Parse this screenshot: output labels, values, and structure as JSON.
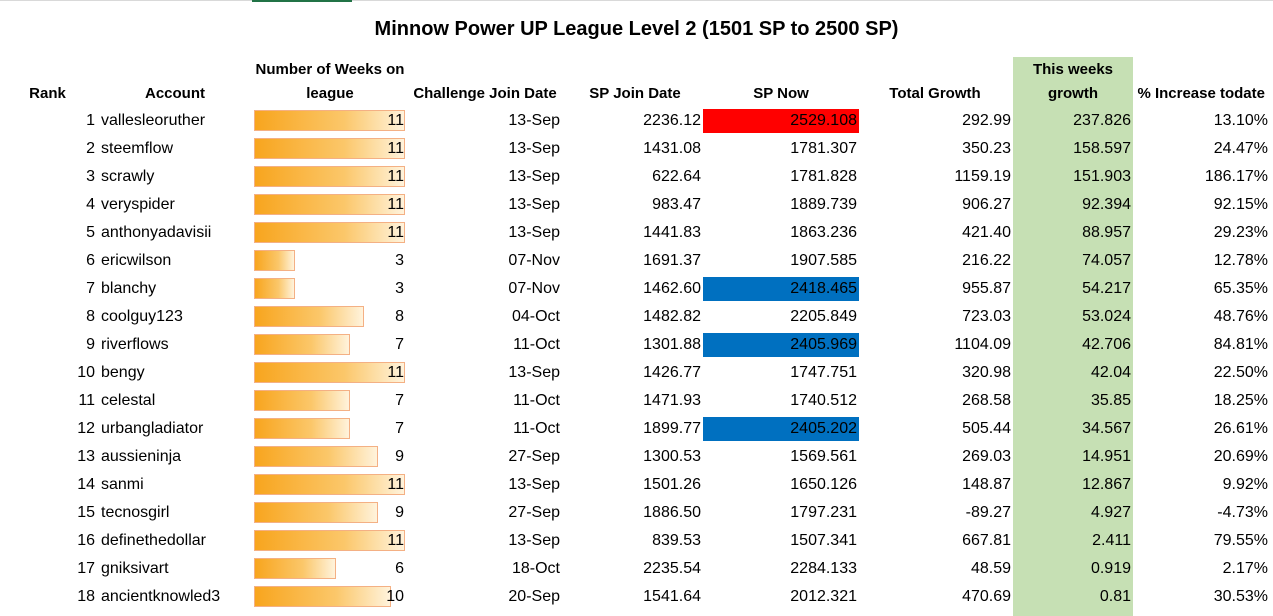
{
  "title": "Minnow Power UP League Level 2 (1501 SP to 2500 SP)",
  "headers": {
    "rank": "Rank",
    "account": "Account",
    "weeks_line1": "Number of Weeks on",
    "weeks_line2": "league",
    "join_date": "Challenge Join Date",
    "sp_join": "SP Join Date",
    "sp_now": "SP Now",
    "total_growth": "Total Growth",
    "week_growth_line1": "This weeks",
    "week_growth_line2": "growth",
    "pct_increase": "% Increase todate"
  },
  "colors": {
    "week_growth_column": "#c6e0b4",
    "red_highlight": "#ff0000",
    "blue_highlight": "#0070c0",
    "data_bar": "#f8a51e"
  },
  "weeks_max": 11,
  "rows": [
    {
      "rank": "1",
      "account": "vallesleoruther",
      "weeks": 11,
      "weeks_label": "11",
      "join_date": "13-Sep",
      "sp_join": "2236.12",
      "sp_now": "2529.108",
      "sp_now_highlight": "red",
      "total_growth": "292.99",
      "week_growth": "237.826",
      "pct": "13.10%"
    },
    {
      "rank": "2",
      "account": "steemflow",
      "weeks": 11,
      "weeks_label": "11",
      "join_date": "13-Sep",
      "sp_join": "1431.08",
      "sp_now": "1781.307",
      "sp_now_highlight": "",
      "total_growth": "350.23",
      "week_growth": "158.597",
      "pct": "24.47%"
    },
    {
      "rank": "3",
      "account": "scrawly",
      "weeks": 11,
      "weeks_label": "11",
      "join_date": "13-Sep",
      "sp_join": "622.64",
      "sp_now": "1781.828",
      "sp_now_highlight": "",
      "total_growth": "1159.19",
      "week_growth": "151.903",
      "pct": "186.17%"
    },
    {
      "rank": "4",
      "account": "veryspider",
      "weeks": 11,
      "weeks_label": "11",
      "join_date": "13-Sep",
      "sp_join": "983.47",
      "sp_now": "1889.739",
      "sp_now_highlight": "",
      "total_growth": "906.27",
      "week_growth": "92.394",
      "pct": "92.15%"
    },
    {
      "rank": "5",
      "account": "anthonyadavisii",
      "weeks": 11,
      "weeks_label": "11",
      "join_date": "13-Sep",
      "sp_join": "1441.83",
      "sp_now": "1863.236",
      "sp_now_highlight": "",
      "total_growth": "421.40",
      "week_growth": "88.957",
      "pct": "29.23%"
    },
    {
      "rank": "6",
      "account": "ericwilson",
      "weeks": 3,
      "weeks_label": "3",
      "join_date": "07-Nov",
      "sp_join": "1691.37",
      "sp_now": "1907.585",
      "sp_now_highlight": "",
      "total_growth": "216.22",
      "week_growth": "74.057",
      "pct": "12.78%"
    },
    {
      "rank": "7",
      "account": "blanchy",
      "weeks": 3,
      "weeks_label": "3",
      "join_date": "07-Nov",
      "sp_join": "1462.60",
      "sp_now": "2418.465",
      "sp_now_highlight": "blue",
      "total_growth": "955.87",
      "week_growth": "54.217",
      "pct": "65.35%"
    },
    {
      "rank": "8",
      "account": "coolguy123",
      "weeks": 8,
      "weeks_label": "8",
      "join_date": "04-Oct",
      "sp_join": "1482.82",
      "sp_now": "2205.849",
      "sp_now_highlight": "",
      "total_growth": "723.03",
      "week_growth": "53.024",
      "pct": "48.76%"
    },
    {
      "rank": "9",
      "account": "riverflows",
      "weeks": 7,
      "weeks_label": "7",
      "join_date": "11-Oct",
      "sp_join": "1301.88",
      "sp_now": "2405.969",
      "sp_now_highlight": "blue",
      "total_growth": "1104.09",
      "week_growth": "42.706",
      "pct": "84.81%"
    },
    {
      "rank": "10",
      "account": "bengy",
      "weeks": 11,
      "weeks_label": "11",
      "join_date": "13-Sep",
      "sp_join": "1426.77",
      "sp_now": "1747.751",
      "sp_now_highlight": "",
      "total_growth": "320.98",
      "week_growth": "42.04",
      "pct": "22.50%"
    },
    {
      "rank": "11",
      "account": "celestal",
      "weeks": 7,
      "weeks_label": "7",
      "join_date": "11-Oct",
      "sp_join": "1471.93",
      "sp_now": "1740.512",
      "sp_now_highlight": "",
      "total_growth": "268.58",
      "week_growth": "35.85",
      "pct": "18.25%"
    },
    {
      "rank": "12",
      "account": "urbangladiator",
      "weeks": 7,
      "weeks_label": "7",
      "join_date": "11-Oct",
      "sp_join": "1899.77",
      "sp_now": "2405.202",
      "sp_now_highlight": "blue",
      "total_growth": "505.44",
      "week_growth": "34.567",
      "pct": "26.61%"
    },
    {
      "rank": "13",
      "account": "aussieninja",
      "weeks": 9,
      "weeks_label": "9",
      "join_date": "27-Sep",
      "sp_join": "1300.53",
      "sp_now": "1569.561",
      "sp_now_highlight": "",
      "total_growth": "269.03",
      "week_growth": "14.951",
      "pct": "20.69%"
    },
    {
      "rank": "14",
      "account": "sanmi",
      "weeks": 11,
      "weeks_label": "11",
      "join_date": "13-Sep",
      "sp_join": "1501.26",
      "sp_now": "1650.126",
      "sp_now_highlight": "",
      "total_growth": "148.87",
      "week_growth": "12.867",
      "pct": "9.92%"
    },
    {
      "rank": "15",
      "account": "tecnosgirl",
      "weeks": 9,
      "weeks_label": "9",
      "join_date": "27-Sep",
      "sp_join": "1886.50",
      "sp_now": "1797.231",
      "sp_now_highlight": "",
      "total_growth": "-89.27",
      "week_growth": "4.927",
      "pct": "-4.73%"
    },
    {
      "rank": "16",
      "account": "definethedollar",
      "weeks": 11,
      "weeks_label": "11",
      "join_date": "13-Sep",
      "sp_join": "839.53",
      "sp_now": "1507.341",
      "sp_now_highlight": "",
      "total_growth": "667.81",
      "week_growth": "2.411",
      "pct": "79.55%"
    },
    {
      "rank": "17",
      "account": "gniksivart",
      "weeks": 6,
      "weeks_label": "6",
      "join_date": "18-Oct",
      "sp_join": "2235.54",
      "sp_now": "2284.133",
      "sp_now_highlight": "",
      "total_growth": "48.59",
      "week_growth": "0.919",
      "pct": "2.17%"
    },
    {
      "rank": "18",
      "account": "ancientknowled3",
      "weeks": 10,
      "weeks_label": "10",
      "join_date": "20-Sep",
      "sp_join": "1541.64",
      "sp_now": "2012.321",
      "sp_now_highlight": "",
      "total_growth": "470.69",
      "week_growth": "0.81",
      "pct": "30.53%"
    }
  ]
}
